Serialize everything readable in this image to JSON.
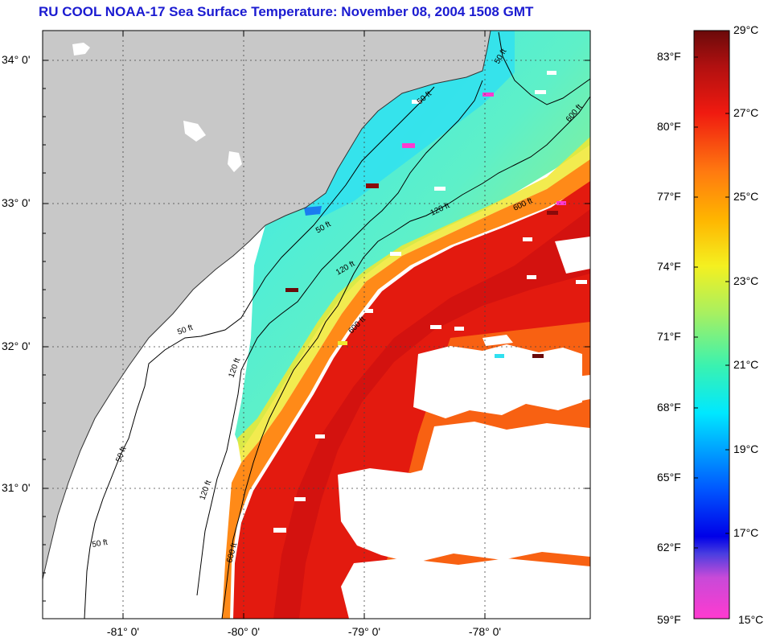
{
  "title": "RU COOL  NOAA-17  Sea Surface Temperature:  November 08, 2004 1508 GMT",
  "map": {
    "lat_labels": [
      "34° 0'",
      "33° 0'",
      "32° 0'",
      "31° 0'"
    ],
    "lon_labels": [
      "-81° 0'",
      "-80° 0'",
      "-79° 0'",
      "-78° 0'"
    ],
    "contour_labels": [
      "50 ft",
      "120 ft",
      "600 ft",
      "50 ft",
      "120 ft",
      "600 ft",
      "50 ft",
      "50 ft",
      "120 ft",
      "600 ft",
      "50 ft",
      "120 ft",
      "600 ft",
      "50 ft"
    ]
  },
  "colorbar": {
    "fahrenheit_labels": [
      "83°F",
      "80°F",
      "77°F",
      "74°F",
      "71°F",
      "68°F",
      "65°F",
      "62°F",
      "59°F"
    ],
    "celsius_labels": [
      "29°C",
      "27°C",
      "25°C",
      "23°C",
      "21°C",
      "19°C",
      "17°C",
      "15°C"
    ],
    "range_celsius": [
      15,
      29
    ]
  },
  "colors": {
    "title": "#1b1bd1",
    "land": "#c8c8c8",
    "cold_shelf": "#30e8e8",
    "warm_gulf_stream": "#e31a0f"
  }
}
